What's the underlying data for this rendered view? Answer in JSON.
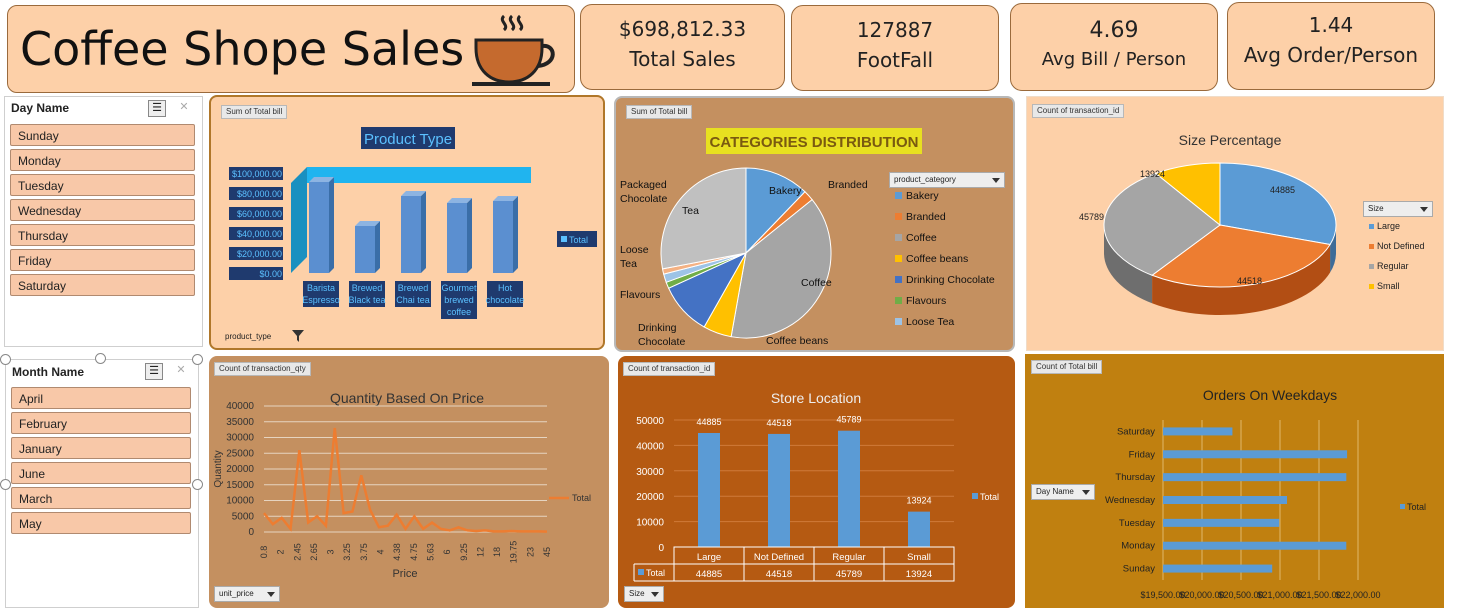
{
  "title": "Coffee Shope Sales",
  "kpis": [
    {
      "value": "$698,812.33",
      "label": "Total Sales"
    },
    {
      "value": "127887",
      "label": "FootFall"
    },
    {
      "value": "4.69",
      "label": "Avg Bill / Person"
    },
    {
      "value": "1.44",
      "label": "Avg Order/Person"
    }
  ],
  "slicers": {
    "day": {
      "title": "Day Name",
      "items": [
        "Sunday",
        "Monday",
        "Tuesday",
        "Wednesday",
        "Thursday",
        "Friday",
        "Saturday"
      ]
    },
    "month": {
      "title": "Month Name",
      "items": [
        "April",
        "February",
        "January",
        "June",
        "March",
        "May"
      ]
    }
  },
  "fields": {
    "p1_value": "Sum of Total bill",
    "p1_axis": "product_type",
    "p2_value": "Sum of Total bill",
    "p2_legend": "product_category",
    "p3_value": "Count of transaction_id",
    "p3_legend": "Size",
    "p4_value": "Count of transaction_qty",
    "p4_axis": "unit_price",
    "p5_value": "Count of transaction_id",
    "p5_axis": "Size",
    "p6_value": "Count of Total bill",
    "p6_axis": "Day Name"
  },
  "chart_data": [
    {
      "type": "bar",
      "title": "Product Type",
      "categories": [
        "Barista Espresso",
        "Brewed Black tea",
        "Brewed Chai tea",
        "Gourmet brewed coffee",
        "Hot chocolate"
      ],
      "series": [
        {
          "name": "Total",
          "values": [
            91000,
            47000,
            77000,
            70000,
            72000
          ]
        }
      ],
      "yticks": [
        "$0.00",
        "$20,000.00",
        "$40,000.00",
        "$60,000.00",
        "$80,000.00",
        "$100,000.00"
      ],
      "ylim": [
        0,
        100000
      ]
    },
    {
      "type": "pie",
      "title": "CATEGORIES DISTRIBUTION",
      "categories": [
        "Bakery",
        "Branded",
        "Coffee",
        "Coffee beans",
        "Drinking Chocolate",
        "Flavours",
        "Loose Tea",
        "Packaged Chocolate",
        "Tea"
      ],
      "slice_labels": [
        "Bakery",
        "Branded",
        "Coffee",
        "Coffee beans",
        "Drinking\nChocolate",
        "Flavours",
        "Loose\nTea",
        "Packaged\nChocolate",
        "Tea"
      ],
      "values": [
        12.2,
        2.0,
        38.6,
        5.4,
        10.0,
        1.2,
        1.6,
        1.0,
        28.0
      ],
      "colors": [
        "#5b9bd5",
        "#ed7d31",
        "#a5a5a5",
        "#ffc000",
        "#4472c4",
        "#70ad47",
        "#9dc3e6",
        "#f4b183",
        "#c0c0c0"
      ]
    },
    {
      "type": "pie",
      "title": "Size Percentage",
      "categories": [
        "Large",
        "Not Defined",
        "Regular",
        "Small"
      ],
      "values": [
        44885,
        44518,
        45789,
        13924
      ],
      "colors": [
        "#5b9bd5",
        "#ed7d31",
        "#a5a5a5",
        "#ffc000"
      ]
    },
    {
      "type": "line",
      "title": "Quantity Based On Price",
      "xlabel": "unit_price",
      "ylabel": "Quantity",
      "x": [
        "0.8",
        "1.5",
        "2",
        "2.2",
        "2.45",
        "2.5",
        "2.55",
        "2.65",
        "3",
        "3.15",
        "3.25",
        "3.5",
        "3.75",
        "4",
        "4.25",
        "4.38",
        "4.5",
        "4.75",
        "5",
        "5.5",
        "5.63",
        "6",
        "7.5",
        "9.25",
        "10",
        "12",
        "14",
        "18",
        "19.75",
        "21",
        "23",
        "28",
        "45"
      ],
      "xticklabels": [
        "0.8",
        "2",
        "2.45",
        "2.65",
        "3",
        "3.25",
        "3.75",
        "4",
        "4.38",
        "4.75",
        "5.63",
        "6",
        "9.25",
        "12",
        "18",
        "19.75",
        "23",
        "45"
      ],
      "series": [
        {
          "name": "Total",
          "values": [
            6000,
            2500,
            4500,
            1000,
            26000,
            3000,
            5000,
            2000,
            33000,
            6000,
            6500,
            18000,
            7000,
            1500,
            2000,
            5500,
            1000,
            5000,
            1000,
            3000,
            1000,
            500,
            1500,
            500,
            300,
            500,
            200,
            200,
            300,
            200,
            200,
            200,
            100
          ]
        }
      ],
      "yticks": [
        0,
        5000,
        10000,
        15000,
        20000,
        25000,
        30000,
        35000,
        40000
      ],
      "ylim": [
        0,
        40000
      ]
    },
    {
      "type": "bar",
      "title": "Store Location",
      "categories": [
        "Large",
        "Not Defined",
        "Regular",
        "Small"
      ],
      "series": [
        {
          "name": "Total",
          "values": [
            44885,
            44518,
            45789,
            13924
          ]
        }
      ],
      "yticks": [
        0,
        10000,
        20000,
        30000,
        40000,
        50000
      ],
      "ylim": [
        0,
        50000
      ]
    },
    {
      "type": "bar",
      "orientation": "horizontal",
      "title": "Orders On Weekdays",
      "categories": [
        "Sunday",
        "Monday",
        "Tuesday",
        "Wednesday",
        "Thursday",
        "Friday",
        "Saturday"
      ],
      "series": [
        {
          "name": "Total",
          "values": [
            20900,
            21850,
            20990,
            21090,
            21850,
            21860,
            20390
          ]
        }
      ],
      "xticks": [
        "$19,500.00",
        "$20,000.00",
        "$20,500.00",
        "$21,000.00",
        "$21,500.00",
        "$22,000.00"
      ],
      "xlim": [
        19500,
        22000
      ]
    }
  ]
}
